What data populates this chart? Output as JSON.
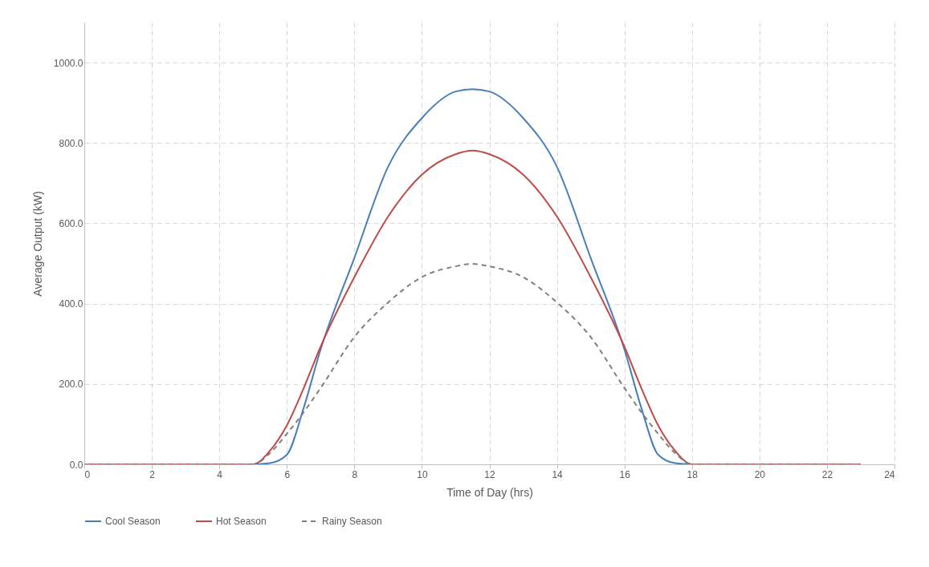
{
  "chart_data": {
    "type": "line",
    "xlabel": "Time of Day (hrs)",
    "ylabel": "Average Output (kW)",
    "x": [
      0,
      1,
      2,
      3,
      4,
      5,
      5.5,
      6,
      6.5,
      7,
      8,
      9,
      10,
      11,
      11.5,
      12,
      13,
      14,
      15,
      16,
      16.5,
      17,
      17.5,
      18,
      19,
      20,
      21,
      22,
      23
    ],
    "series": [
      {
        "name": "Cool Season",
        "color": "#4a7ebb",
        "line_style": "solid",
        "values": [
          null,
          null,
          null,
          null,
          0,
          0,
          3,
          24,
          141,
          286,
          514,
          741,
          862,
          928,
          934,
          928,
          862,
          741,
          514,
          286,
          141,
          24,
          3,
          0,
          0,
          null,
          null,
          null,
          null
        ]
      },
      {
        "name": "Hot Season",
        "color": "#be4b48",
        "line_style": "solid",
        "values": [
          0,
          0,
          0,
          0,
          0,
          0,
          34,
          97,
          190,
          293,
          466,
          617,
          721,
          772,
          781,
          772,
          721,
          617,
          466,
          293,
          190,
          97,
          34,
          0,
          0,
          0,
          0,
          0,
          0
        ]
      },
      {
        "name": "Rainy Season",
        "color": "#7f7f7f",
        "line_style": "dashed",
        "values": [
          0,
          0,
          0,
          0,
          0,
          0,
          28,
          76,
          130,
          190,
          317,
          403,
          466,
          493,
          499,
          493,
          466,
          403,
          317,
          190,
          130,
          76,
          28,
          0,
          0,
          0,
          0,
          0,
          0
        ]
      }
    ],
    "xlim": [
      0,
      24
    ],
    "xticks": [
      0,
      2,
      4,
      6,
      8,
      10,
      12,
      14,
      16,
      18,
      20,
      22,
      24
    ],
    "ylim": [
      0,
      1100
    ],
    "yticks": [
      {
        "value": 0,
        "label": "0.0"
      },
      {
        "value": 200,
        "label": "200.0"
      },
      {
        "value": 400,
        "label": "400.0"
      },
      {
        "value": 600,
        "label": "600.0"
      },
      {
        "value": 800,
        "label": "800.0"
      },
      {
        "value": 1000,
        "label": "1000.0"
      }
    ],
    "grid": true,
    "legend": "bottom"
  }
}
